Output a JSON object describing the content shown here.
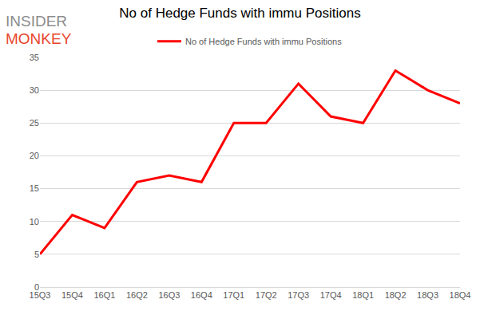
{
  "chart_data": {
    "type": "line",
    "title": "No of Hedge Funds with immu Positions",
    "annotations": [
      "INSIDER",
      "MONKEY"
    ],
    "categories": [
      "15Q3",
      "15Q4",
      "16Q1",
      "16Q2",
      "16Q3",
      "16Q4",
      "17Q1",
      "17Q2",
      "17Q3",
      "17Q4",
      "18Q1",
      "18Q2",
      "18Q3",
      "18Q4"
    ],
    "series": [
      {
        "name": "No of Hedge Funds with immu Positions",
        "color": "#ff0000",
        "values": [
          5,
          11,
          9,
          16,
          17,
          16,
          25,
          25,
          31,
          26,
          25,
          33,
          30,
          28
        ]
      }
    ],
    "ylim": [
      0,
      35
    ],
    "yticks": [
      0,
      5,
      10,
      15,
      20,
      25,
      30,
      35
    ],
    "grid": true,
    "legend": "top"
  }
}
